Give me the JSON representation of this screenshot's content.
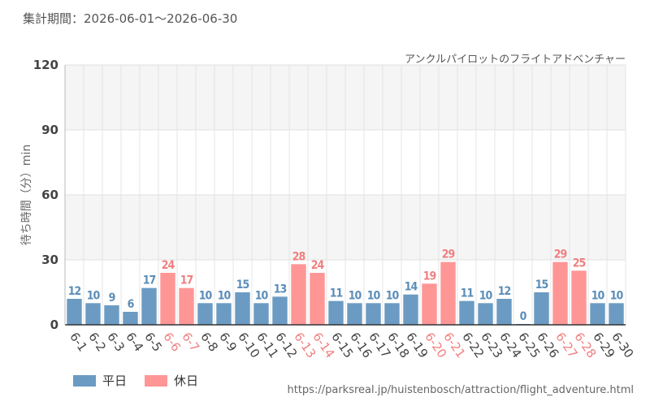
{
  "header": {
    "period_label": "集計期間：2026-06-01～2026-06-30",
    "subtitle": "アンクルパイロットのフライトアドベンチャー"
  },
  "footer": {
    "source": "https://parksreal.jp/huistenbosch/attraction/flight_adventure.html"
  },
  "colors": {
    "weekday": "#6b9bc3",
    "holiday": "#ff9696",
    "weekday_label": "#5b8db8",
    "holiday_label": "#f07f7f"
  },
  "chart_data": {
    "type": "bar",
    "title": "アンクルパイロットのフライトアドベンチャー",
    "xlabel": "",
    "ylabel": "待ち時間（分）min",
    "ylim": [
      0,
      120
    ],
    "yticks": [
      0,
      30,
      60,
      90,
      120
    ],
    "grid": true,
    "legend_position": "bottom-left",
    "legend": [
      {
        "name": "平日",
        "key": "weekday"
      },
      {
        "name": "休日",
        "key": "holiday"
      }
    ],
    "categories": [
      "6-1",
      "6-2",
      "6-3",
      "6-4",
      "6-5",
      "6-6",
      "6-7",
      "6-8",
      "6-9",
      "6-10",
      "6-11",
      "6-12",
      "6-13",
      "6-14",
      "6-15",
      "6-16",
      "6-17",
      "6-18",
      "6-19",
      "6-20",
      "6-21",
      "6-22",
      "6-23",
      "6-24",
      "6-25",
      "6-26",
      "6-27",
      "6-28",
      "6-29",
      "6-30"
    ],
    "values": [
      12,
      10,
      9,
      6,
      17,
      24,
      17,
      10,
      10,
      15,
      10,
      13,
      28,
      24,
      11,
      10,
      10,
      10,
      14,
      19,
      29,
      11,
      10,
      12,
      0,
      15,
      29,
      25,
      10,
      10
    ],
    "day_type": [
      "weekday",
      "weekday",
      "weekday",
      "weekday",
      "weekday",
      "holiday",
      "holiday",
      "weekday",
      "weekday",
      "weekday",
      "weekday",
      "weekday",
      "holiday",
      "holiday",
      "weekday",
      "weekday",
      "weekday",
      "weekday",
      "weekday",
      "holiday",
      "holiday",
      "weekday",
      "weekday",
      "weekday",
      "weekday",
      "weekday",
      "holiday",
      "holiday",
      "weekday",
      "weekday"
    ]
  }
}
